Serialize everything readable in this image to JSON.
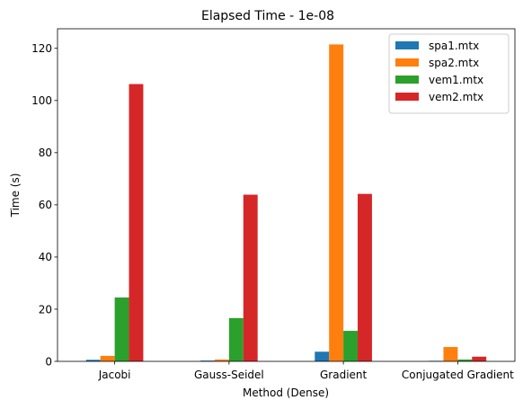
{
  "chart_data": {
    "type": "bar",
    "title": "Elapsed Time - 1e-08",
    "xlabel": "Method (Dense)",
    "ylabel": "Time (s)",
    "categories": [
      "Jacobi",
      "Gauss-Seidel",
      "Gradient",
      "Conjugated Gradient"
    ],
    "series": [
      {
        "name": "spa1.mtx",
        "color": "#1f77b4",
        "values": [
          0.6,
          0.3,
          3.7,
          0.2
        ]
      },
      {
        "name": "spa2.mtx",
        "color": "#ff7f0e",
        "values": [
          2.1,
          0.7,
          121.5,
          5.5
        ]
      },
      {
        "name": "vem1.mtx",
        "color": "#2ca02c",
        "values": [
          24.5,
          16.6,
          11.7,
          0.7
        ]
      },
      {
        "name": "vem2.mtx",
        "color": "#d62728",
        "values": [
          106.3,
          63.9,
          64.2,
          1.8
        ]
      }
    ],
    "ylim": [
      0,
      127.5
    ],
    "yticks": [
      0,
      20,
      40,
      60,
      80,
      100,
      120
    ],
    "grid": false,
    "legend": "top-right"
  }
}
